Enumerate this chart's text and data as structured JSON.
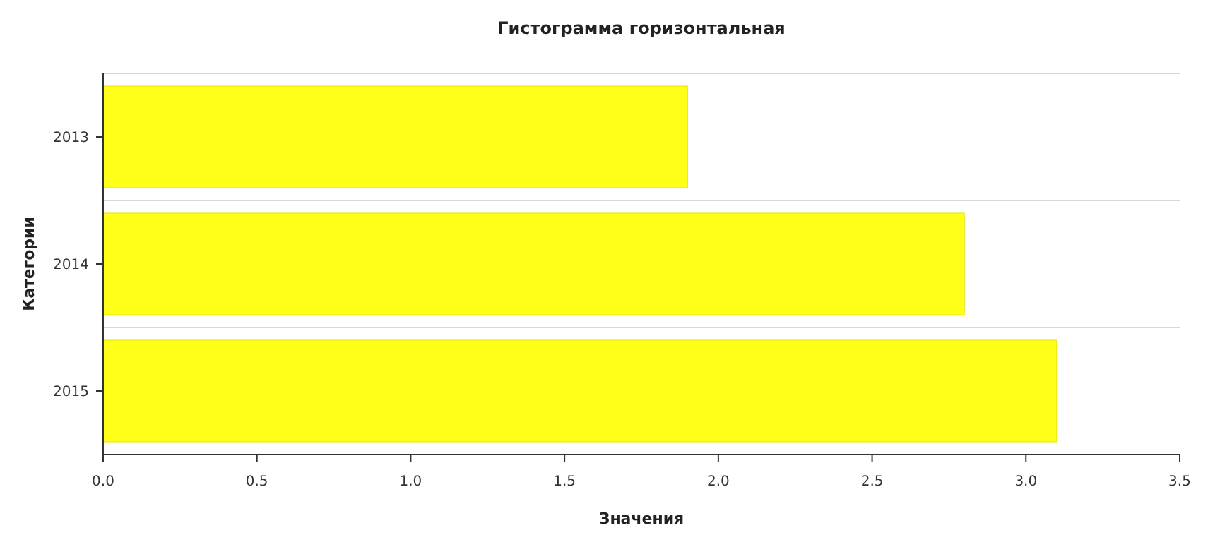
{
  "chart_data": {
    "type": "bar",
    "orientation": "horizontal",
    "title": "Гистограмма горизонтальная",
    "xlabel": "Значения",
    "ylabel": "Категории",
    "categories": [
      "2013",
      "2014",
      "2015"
    ],
    "values": [
      1.9,
      2.8,
      3.1
    ],
    "color": "#ffff1a",
    "xlim": [
      0,
      3.5
    ],
    "xticks": [
      {
        "value": 0,
        "label": "0.0"
      },
      {
        "value": 0.5,
        "label": "0.5"
      },
      {
        "value": 1,
        "label": "1.0"
      },
      {
        "value": 1.5,
        "label": "1.5"
      },
      {
        "value": 2,
        "label": "2.0"
      },
      {
        "value": 2.5,
        "label": "2.5"
      },
      {
        "value": 3,
        "label": "3.0"
      },
      {
        "value": 3.5,
        "label": "3.5"
      }
    ],
    "grid": "y"
  }
}
